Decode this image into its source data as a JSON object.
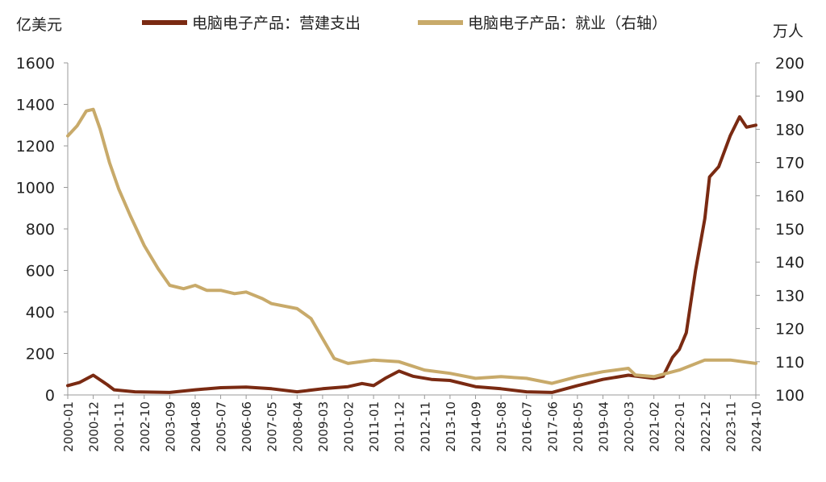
{
  "units": {
    "left": "亿美元",
    "right": "万人"
  },
  "colors": {
    "spending": "#7a2a12",
    "employment": "#c8aa6a",
    "axis": "#999999"
  },
  "chart_data": {
    "type": "line",
    "start": "2000-01",
    "end": "2024-10",
    "ylim_left": [
      0,
      1600
    ],
    "ylim_right": [
      100,
      200
    ],
    "yticks_left": [
      0,
      200,
      400,
      600,
      800,
      1000,
      1200,
      1400,
      1600
    ],
    "yticks_right": [
      100,
      110,
      120,
      130,
      140,
      150,
      160,
      170,
      180,
      190,
      200
    ],
    "xtick_labels": [
      "2000-01",
      "2000-12",
      "2001-11",
      "2002-10",
      "2003-09",
      "2004-08",
      "2005-07",
      "2006-06",
      "2007-05",
      "2008-04",
      "2009-03",
      "2010-02",
      "2011-01",
      "2011-12",
      "2012-11",
      "2013-10",
      "2014-09",
      "2015-08",
      "2016-07",
      "2017-06",
      "2018-05",
      "2019-04",
      "2020-03",
      "2021-02",
      "2022-01",
      "2022-12",
      "2023-11",
      "2024-10"
    ],
    "grid": false,
    "legend_position": "top",
    "series": [
      {
        "name": "电脑电子产品：营建支出",
        "axis": "left",
        "points": [
          [
            "2000-01",
            45
          ],
          [
            "2000-06",
            60
          ],
          [
            "2000-12",
            95
          ],
          [
            "2001-06",
            50
          ],
          [
            "2001-09",
            25
          ],
          [
            "2002-06",
            15
          ],
          [
            "2003-09",
            12
          ],
          [
            "2004-08",
            25
          ],
          [
            "2005-07",
            35
          ],
          [
            "2006-06",
            38
          ],
          [
            "2007-05",
            30
          ],
          [
            "2008-04",
            15
          ],
          [
            "2009-03",
            30
          ],
          [
            "2010-02",
            40
          ],
          [
            "2010-08",
            55
          ],
          [
            "2011-01",
            45
          ],
          [
            "2011-06",
            80
          ],
          [
            "2011-12",
            115
          ],
          [
            "2012-06",
            90
          ],
          [
            "2013-02",
            75
          ],
          [
            "2013-10",
            70
          ],
          [
            "2014-09",
            40
          ],
          [
            "2015-08",
            30
          ],
          [
            "2016-07",
            15
          ],
          [
            "2017-06",
            12
          ],
          [
            "2018-05",
            45
          ],
          [
            "2019-04",
            75
          ],
          [
            "2020-03",
            95
          ],
          [
            "2021-02",
            80
          ],
          [
            "2021-06",
            90
          ],
          [
            "2021-10",
            180
          ],
          [
            "2022-01",
            220
          ],
          [
            "2022-04",
            300
          ],
          [
            "2022-08",
            600
          ],
          [
            "2022-12",
            850
          ],
          [
            "2023-02",
            1050
          ],
          [
            "2023-06",
            1100
          ],
          [
            "2023-11",
            1250
          ],
          [
            "2024-03",
            1340
          ],
          [
            "2024-06",
            1290
          ],
          [
            "2024-10",
            1300
          ]
        ]
      },
      {
        "name": "电脑电子产品：就业（右轴）",
        "axis": "right",
        "points": [
          [
            "2000-01",
            178
          ],
          [
            "2000-05",
            181
          ],
          [
            "2000-09",
            185.5
          ],
          [
            "2000-12",
            186
          ],
          [
            "2001-03",
            180
          ],
          [
            "2001-07",
            170
          ],
          [
            "2001-11",
            162
          ],
          [
            "2002-04",
            154
          ],
          [
            "2002-10",
            145
          ],
          [
            "2003-04",
            138
          ],
          [
            "2003-09",
            133
          ],
          [
            "2004-03",
            132
          ],
          [
            "2004-08",
            133
          ],
          [
            "2005-01",
            131.5
          ],
          [
            "2005-07",
            131.5
          ],
          [
            "2006-01",
            130.5
          ],
          [
            "2006-06",
            131
          ],
          [
            "2007-01",
            129
          ],
          [
            "2007-05",
            127.5
          ],
          [
            "2008-04",
            126
          ],
          [
            "2008-10",
            123
          ],
          [
            "2009-03",
            117
          ],
          [
            "2009-08",
            111
          ],
          [
            "2010-02",
            109.5
          ],
          [
            "2011-01",
            110.5
          ],
          [
            "2011-12",
            110
          ],
          [
            "2012-11",
            107.5
          ],
          [
            "2013-10",
            106.5
          ],
          [
            "2014-09",
            105
          ],
          [
            "2015-08",
            105.5
          ],
          [
            "2016-07",
            105
          ],
          [
            "2017-06",
            103.5
          ],
          [
            "2018-05",
            105.5
          ],
          [
            "2019-04",
            107
          ],
          [
            "2020-03",
            108
          ],
          [
            "2020-06",
            106
          ],
          [
            "2021-02",
            105.5
          ],
          [
            "2022-01",
            107.5
          ],
          [
            "2022-12",
            110.5
          ],
          [
            "2023-11",
            110.5
          ],
          [
            "2024-10",
            109.5
          ]
        ]
      }
    ]
  }
}
